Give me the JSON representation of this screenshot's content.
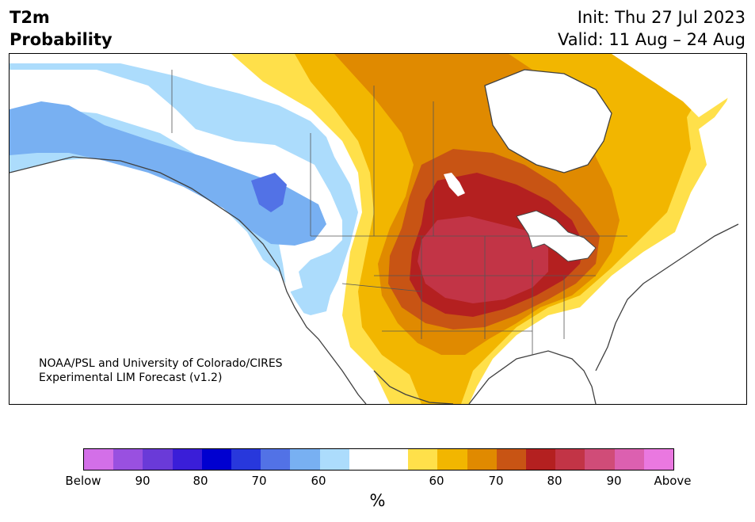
{
  "title": {
    "line1": "T2m",
    "line2": "Probability"
  },
  "dates": {
    "init": "Init: Thu 27 Jul 2023",
    "valid": "Valid: 11 Aug – 24 Aug"
  },
  "credit": {
    "line1": "NOAA/PSL and University of Colorado/CIRES",
    "line2": "Experimental LIM Forecast (v1.2)"
  },
  "colorbar": {
    "unit": "%",
    "colors": [
      "#d36fe8",
      "#9950e0",
      "#6a3ad8",
      "#3a1ed8",
      "#0000d0",
      "#2838dc",
      "#5272e6",
      "#78b0f2",
      "#acdcfc",
      "#ffffff",
      "#ffffff",
      "#ffe04a",
      "#f2b600",
      "#e08a00",
      "#c85414",
      "#b42020",
      "#c23446",
      "#d04c78",
      "#dc60b0",
      "#ea78e0"
    ],
    "ticks": [
      "Below",
      "90",
      "80",
      "70",
      "60",
      "60",
      "70",
      "80",
      "90",
      "Above"
    ]
  },
  "legend_colors": {
    "below_60": "#acdcfc",
    "below_70": "#78b0f2",
    "below_80": "#5272e6",
    "above_60": "#ffe04a",
    "above_65": "#f2b600",
    "above_70": "#e08a00",
    "above_75": "#c85414",
    "above_80": "#b42020",
    "above_85": "#c23446"
  }
}
